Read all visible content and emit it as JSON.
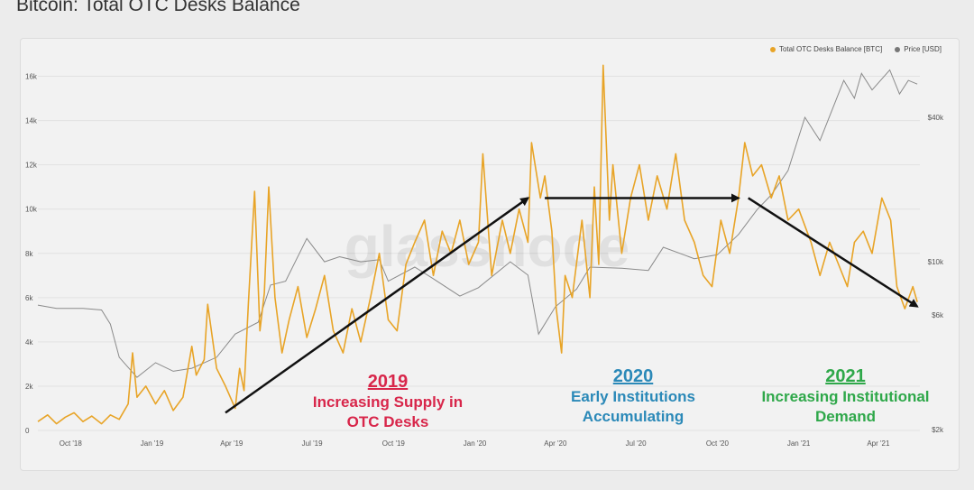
{
  "title": "Bitcoin: Total OTC Desks Balance",
  "watermark": "glassnode",
  "colors": {
    "balance": "#e8a427",
    "price": "#8a8a8a",
    "ann2019": "#d8264a",
    "ann2020": "#2b89b8",
    "ann2021": "#2fa84a",
    "arrow": "#111111"
  },
  "chart_data": {
    "type": "line",
    "title": "Bitcoin: Total OTC Desks Balance",
    "x_ticks": [
      "Oct '18",
      "Jan '19",
      "Apr '19",
      "Jul '19",
      "Oct '19",
      "Jan '20",
      "Apr '20",
      "Jul '20",
      "Oct '20",
      "Jan '21",
      "Apr '21"
    ],
    "y_left_ticks": [
      "0",
      "2k",
      "4k",
      "6k",
      "8k",
      "10k",
      "12k",
      "14k",
      "16k"
    ],
    "y_left_range": [
      0,
      17000
    ],
    "y_right_ticks": [
      "$2k",
      "$6k",
      "$10k",
      "$40k"
    ],
    "y_right_scale": "log",
    "legend_position": "top-right",
    "series": [
      {
        "name": "Total OTC Desks Balance [BTC]",
        "axis": "left",
        "points": [
          [
            "2018-08-25",
            400
          ],
          [
            "2018-09-05",
            700
          ],
          [
            "2018-09-15",
            300
          ],
          [
            "2018-09-25",
            600
          ],
          [
            "2018-10-05",
            800
          ],
          [
            "2018-10-15",
            400
          ],
          [
            "2018-10-25",
            650
          ],
          [
            "2018-11-05",
            300
          ],
          [
            "2018-11-15",
            700
          ],
          [
            "2018-11-25",
            500
          ],
          [
            "2018-12-05",
            1200
          ],
          [
            "2018-12-10",
            3500
          ],
          [
            "2018-12-15",
            1500
          ],
          [
            "2018-12-25",
            2000
          ],
          [
            "2019-01-05",
            1200
          ],
          [
            "2019-01-15",
            1800
          ],
          [
            "2019-01-25",
            900
          ],
          [
            "2019-02-05",
            1500
          ],
          [
            "2019-02-15",
            3800
          ],
          [
            "2019-02-20",
            2500
          ],
          [
            "2019-03-01",
            3200
          ],
          [
            "2019-03-05",
            5700
          ],
          [
            "2019-03-15",
            2800
          ],
          [
            "2019-03-25",
            2000
          ],
          [
            "2019-04-05",
            1000
          ],
          [
            "2019-04-10",
            2800
          ],
          [
            "2019-04-15",
            1800
          ],
          [
            "2019-04-20",
            5800
          ],
          [
            "2019-04-27",
            10800
          ],
          [
            "2019-05-03",
            4500
          ],
          [
            "2019-05-08",
            6200
          ],
          [
            "2019-05-13",
            11000
          ],
          [
            "2019-05-20",
            6000
          ],
          [
            "2019-05-28",
            3500
          ],
          [
            "2019-06-05",
            5000
          ],
          [
            "2019-06-15",
            6500
          ],
          [
            "2019-06-25",
            4200
          ],
          [
            "2019-07-05",
            5500
          ],
          [
            "2019-07-15",
            7000
          ],
          [
            "2019-07-25",
            4500
          ],
          [
            "2019-08-05",
            3500
          ],
          [
            "2019-08-15",
            5500
          ],
          [
            "2019-08-25",
            4000
          ],
          [
            "2019-09-05",
            6000
          ],
          [
            "2019-09-15",
            8000
          ],
          [
            "2019-09-25",
            5000
          ],
          [
            "2019-10-05",
            4500
          ],
          [
            "2019-10-15",
            7500
          ],
          [
            "2019-10-25",
            8500
          ],
          [
            "2019-11-05",
            9500
          ],
          [
            "2019-11-15",
            7000
          ],
          [
            "2019-11-25",
            9000
          ],
          [
            "2019-12-05",
            8000
          ],
          [
            "2019-12-15",
            9500
          ],
          [
            "2019-12-25",
            7500
          ],
          [
            "2020-01-05",
            8500
          ],
          [
            "2020-01-10",
            12500
          ],
          [
            "2020-01-20",
            7000
          ],
          [
            "2020-02-01",
            9500
          ],
          [
            "2020-02-10",
            8000
          ],
          [
            "2020-02-20",
            10000
          ],
          [
            "2020-03-01",
            8500
          ],
          [
            "2020-03-05",
            13000
          ],
          [
            "2020-03-15",
            10500
          ],
          [
            "2020-03-20",
            11500
          ],
          [
            "2020-03-28",
            9000
          ],
          [
            "2020-04-02",
            5500
          ],
          [
            "2020-04-08",
            3500
          ],
          [
            "2020-04-12",
            7000
          ],
          [
            "2020-04-20",
            6000
          ],
          [
            "2020-05-01",
            9500
          ],
          [
            "2020-05-10",
            6000
          ],
          [
            "2020-05-15",
            11000
          ],
          [
            "2020-05-20",
            7500
          ],
          [
            "2020-05-25",
            16500
          ],
          [
            "2020-06-01",
            9500
          ],
          [
            "2020-06-05",
            12000
          ],
          [
            "2020-06-15",
            8000
          ],
          [
            "2020-06-25",
            10500
          ],
          [
            "2020-07-05",
            12000
          ],
          [
            "2020-07-15",
            9500
          ],
          [
            "2020-07-25",
            11500
          ],
          [
            "2020-08-05",
            10000
          ],
          [
            "2020-08-15",
            12500
          ],
          [
            "2020-08-25",
            9500
          ],
          [
            "2020-09-05",
            8500
          ],
          [
            "2020-09-15",
            7000
          ],
          [
            "2020-09-25",
            6500
          ],
          [
            "2020-10-05",
            9500
          ],
          [
            "2020-10-15",
            8000
          ],
          [
            "2020-10-25",
            10500
          ],
          [
            "2020-11-01",
            13000
          ],
          [
            "2020-11-10",
            11500
          ],
          [
            "2020-11-20",
            12000
          ],
          [
            "2020-12-01",
            10500
          ],
          [
            "2020-12-10",
            11500
          ],
          [
            "2020-12-20",
            9500
          ],
          [
            "2021-01-01",
            10000
          ],
          [
            "2021-01-15",
            8500
          ],
          [
            "2021-01-25",
            7000
          ],
          [
            "2021-02-05",
            8500
          ],
          [
            "2021-02-15",
            7500
          ],
          [
            "2021-02-25",
            6500
          ],
          [
            "2021-03-05",
            8500
          ],
          [
            "2021-03-15",
            9000
          ],
          [
            "2021-03-25",
            8000
          ],
          [
            "2021-04-05",
            10500
          ],
          [
            "2021-04-15",
            9500
          ],
          [
            "2021-04-22",
            6500
          ],
          [
            "2021-05-01",
            5500
          ],
          [
            "2021-05-10",
            6500
          ],
          [
            "2021-05-15",
            5800
          ]
        ]
      },
      {
        "name": "Price [USD]",
        "axis": "right",
        "points": [
          [
            "2018-08-25",
            6600
          ],
          [
            "2018-09-15",
            6400
          ],
          [
            "2018-10-15",
            6400
          ],
          [
            "2018-11-05",
            6300
          ],
          [
            "2018-11-15",
            5500
          ],
          [
            "2018-11-25",
            4000
          ],
          [
            "2018-12-15",
            3300
          ],
          [
            "2019-01-05",
            3800
          ],
          [
            "2019-01-25",
            3500
          ],
          [
            "2019-02-15",
            3600
          ],
          [
            "2019-03-15",
            4000
          ],
          [
            "2019-04-05",
            5000
          ],
          [
            "2019-05-01",
            5600
          ],
          [
            "2019-05-15",
            8000
          ],
          [
            "2019-06-01",
            8300
          ],
          [
            "2019-06-25",
            12500
          ],
          [
            "2019-07-15",
            10000
          ],
          [
            "2019-08-01",
            10500
          ],
          [
            "2019-08-25",
            10000
          ],
          [
            "2019-09-15",
            10200
          ],
          [
            "2019-09-25",
            8300
          ],
          [
            "2019-10-25",
            9500
          ],
          [
            "2019-11-15",
            8500
          ],
          [
            "2019-12-15",
            7200
          ],
          [
            "2020-01-05",
            7800
          ],
          [
            "2020-02-10",
            10000
          ],
          [
            "2020-03-01",
            8800
          ],
          [
            "2020-03-13",
            5000
          ],
          [
            "2020-04-01",
            6500
          ],
          [
            "2020-04-25",
            7700
          ],
          [
            "2020-05-10",
            9500
          ],
          [
            "2020-06-15",
            9400
          ],
          [
            "2020-07-15",
            9200
          ],
          [
            "2020-08-01",
            11500
          ],
          [
            "2020-09-05",
            10300
          ],
          [
            "2020-10-01",
            10700
          ],
          [
            "2020-10-25",
            13000
          ],
          [
            "2020-11-15",
            16500
          ],
          [
            "2020-12-01",
            19000
          ],
          [
            "2020-12-20",
            24000
          ],
          [
            "2021-01-08",
            40000
          ],
          [
            "2021-01-25",
            32000
          ],
          [
            "2021-02-10",
            45000
          ],
          [
            "2021-02-21",
            57000
          ],
          [
            "2021-03-05",
            48000
          ],
          [
            "2021-03-13",
            61000
          ],
          [
            "2021-03-25",
            52000
          ],
          [
            "2021-04-14",
            63000
          ],
          [
            "2021-04-25",
            50000
          ],
          [
            "2021-05-05",
            57000
          ],
          [
            "2021-05-15",
            55000
          ]
        ]
      }
    ]
  },
  "annotations": [
    {
      "year": "2019",
      "line1": "Increasing Supply in",
      "line2": "OTC Desks"
    },
    {
      "year": "2020",
      "line1": "Early Institutions",
      "line2": "Accumulating"
    },
    {
      "year": "2021",
      "line1": "Increasing Institutional",
      "line2": "Demand"
    }
  ]
}
